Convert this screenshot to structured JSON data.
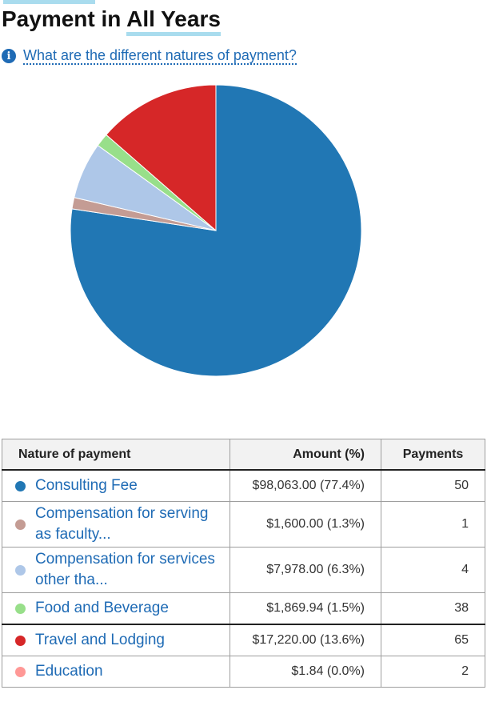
{
  "header": {
    "title_prefix": "Payment in ",
    "title_highlight": "All Years",
    "info_link": "What are the different natures of payment?"
  },
  "colors": {
    "accent": "#a9dcee",
    "link": "#1f6bb5"
  },
  "chart_data": {
    "type": "pie",
    "title": "Payment in All Years",
    "start_angle_deg": 0,
    "direction": "clockwise",
    "slices": [
      {
        "label": "Consulting Fee",
        "value": 98063.0,
        "percent": 77.4,
        "color": "#2177b4"
      },
      {
        "label": "Compensation for serving as faculty...",
        "value": 1600.0,
        "percent": 1.3,
        "color": "#c49c94"
      },
      {
        "label": "Compensation for services other tha...",
        "value": 7978.0,
        "percent": 6.3,
        "color": "#aec7e8"
      },
      {
        "label": "Food and Beverage",
        "value": 1869.94,
        "percent": 1.5,
        "color": "#98df8a"
      },
      {
        "label": "Travel and Lodging",
        "value": 17220.0,
        "percent": 13.6,
        "color": "#d62728"
      },
      {
        "label": "Education",
        "value": 1.84,
        "percent": 0.0,
        "color": "#ff9896"
      }
    ]
  },
  "table": {
    "headers": {
      "nature": "Nature of payment",
      "amount": "Amount (%)",
      "payments": "Payments"
    },
    "rows": [
      {
        "name": "Consulting Fee",
        "amount": "$98,063.00 (77.4%)",
        "count": "50",
        "color": "#2177b4"
      },
      {
        "name": "Compensation for serving as faculty...",
        "amount": "$1,600.00 (1.3%)",
        "count": "1",
        "color": "#c49c94"
      },
      {
        "name": "Compensation for services other tha...",
        "amount": "$7,978.00 (6.3%)",
        "count": "4",
        "color": "#aec7e8"
      },
      {
        "name": "Food and Beverage",
        "amount": "$1,869.94 (1.5%)",
        "count": "38",
        "color": "#98df8a"
      },
      {
        "name": "Travel and Lodging",
        "amount": "$17,220.00 (13.6%)",
        "count": "65",
        "color": "#d62728"
      },
      {
        "name": "Education",
        "amount": "$1.84 (0.0%)",
        "count": "2",
        "color": "#ff9896"
      }
    ]
  }
}
